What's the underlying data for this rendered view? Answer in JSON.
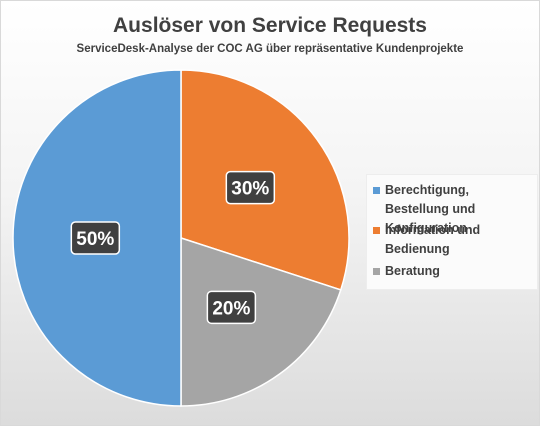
{
  "chart_data": {
    "type": "pie",
    "title": "Auslöser von Service Requests",
    "subtitle": "ServiceDesk-Analyse der COC AG über repräsentative Kundenprojekte",
    "categories": [
      "Berechtigung, Bestellung und Konfiguration",
      "Information und Bedienung",
      "Beratung"
    ],
    "values": [
      50,
      30,
      20
    ],
    "data_labels": [
      "50%",
      "30%",
      "20%"
    ],
    "colors": [
      "#5b9bd5",
      "#ed7d31",
      "#a5a5a5"
    ],
    "legend_position": "right"
  }
}
